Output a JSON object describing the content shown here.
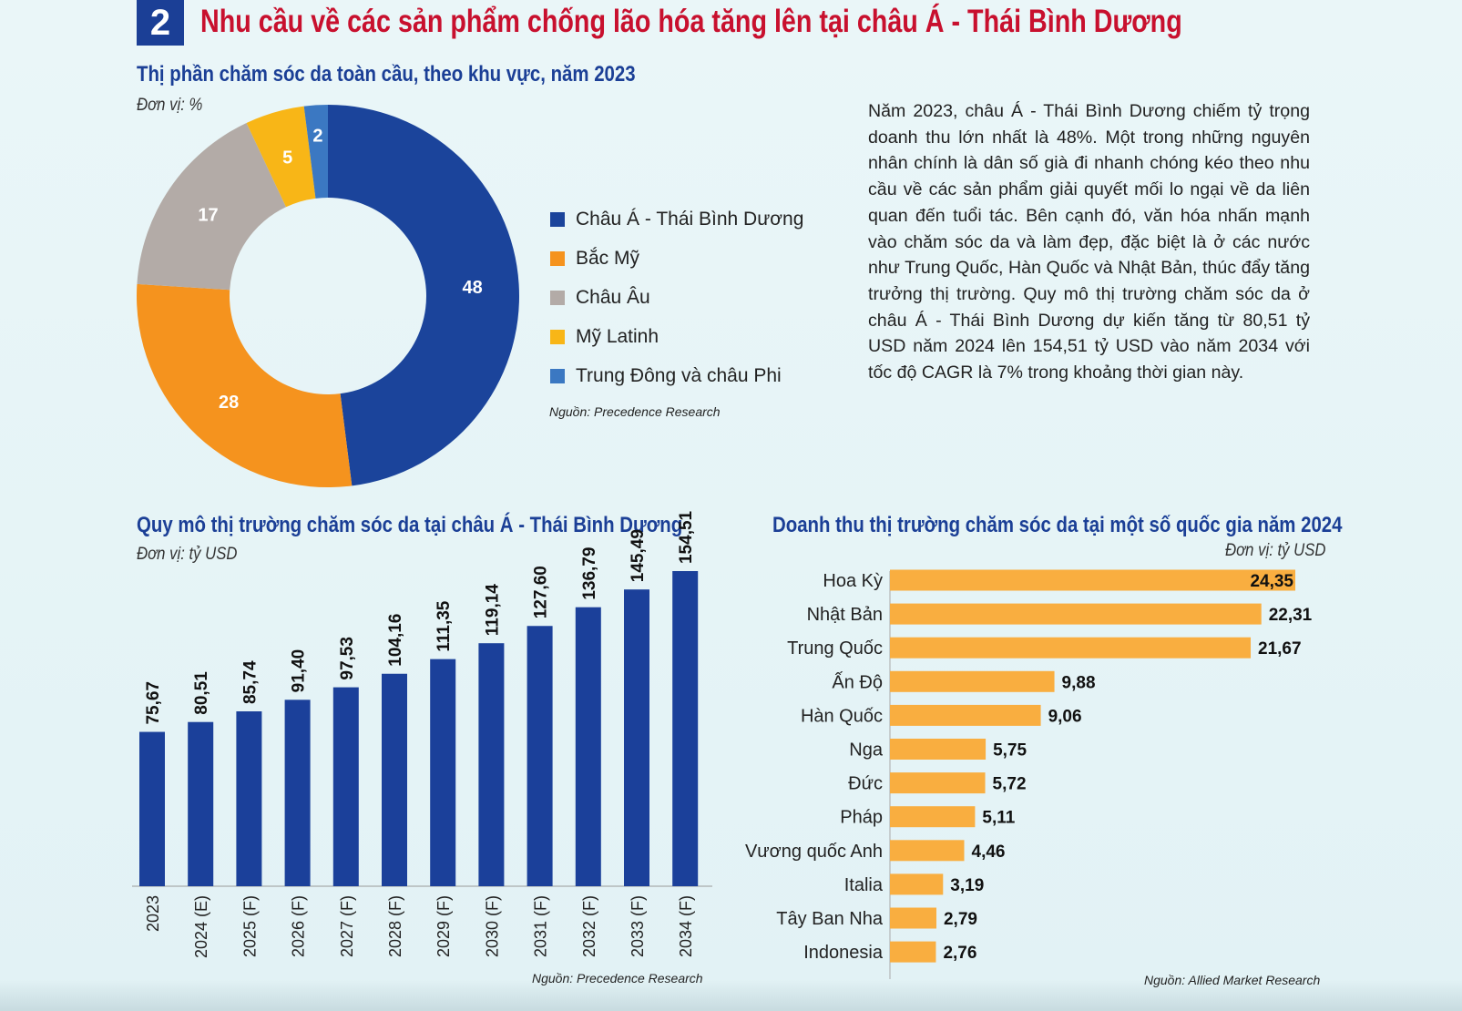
{
  "header": {
    "number": "2",
    "title": "Nhu cầu về các sản phẩm chống lão hóa tăng lên tại châu Á - Thái Bình Dương"
  },
  "description": "Năm 2023, châu Á - Thái Bình Dương chiếm tỷ trọng doanh thu lớn nhất là 48%. Một trong những nguyên nhân chính là dân số già đi nhanh chóng kéo theo nhu cầu về các sản phẩm giải quyết mối lo ngại về da liên quan đến tuổi tác. Bên cạnh đó, văn hóa nhấn mạnh vào chăm sóc da và làm đẹp, đặc biệt là ở các nước như Trung Quốc, Hàn Quốc và Nhật Bản, thúc đẩy tăng trưởng thị trường. Quy mô thị trường chăm sóc da ở châu Á - Thái Bình Dương dự kiến tăng từ 80,51 tỷ USD năm 2024 lên 154,51 tỷ USD vào năm 2034 với tốc độ CAGR là 7% trong khoảng thời gian này.",
  "chart_data": [
    {
      "type": "pie",
      "title": "Thị phần chăm sóc da toàn cầu, theo khu vực, năm 2023",
      "unit": "Đơn vị: %",
      "source": "Nguồn: Precedence Research",
      "legend_position": "right",
      "categories": [
        "Châu Á - Thái Bình Dương",
        "Bắc Mỹ",
        "Châu Âu",
        "Mỹ Latinh",
        "Trung Đông và châu Phi"
      ],
      "values": [
        48,
        28,
        17,
        5,
        2
      ],
      "labels": [
        "48",
        "28",
        "17",
        "5",
        "2"
      ],
      "colors": [
        "#1b449b",
        "#f5931e",
        "#b3aba7",
        "#f8b617",
        "#3b78c2"
      ]
    },
    {
      "type": "bar",
      "title": "Quy mô thị trường chăm sóc da tại châu Á - Thái Bình Dương",
      "unit": "Đơn vị: tỷ USD",
      "source": "Nguồn: Precedence Research",
      "categories": [
        "2023",
        "2024 (E)",
        "2025 (F)",
        "2026 (F)",
        "2027 (F)",
        "2028 (F)",
        "2029 (F)",
        "2030 (F)",
        "2031 (F)",
        "2032 (F)",
        "2033 (F)",
        "2034 (F)"
      ],
      "values": [
        75.67,
        80.51,
        85.74,
        91.4,
        97.53,
        104.16,
        111.35,
        119.14,
        127.6,
        136.79,
        145.49,
        154.51
      ],
      "labels": [
        "75,67",
        "80,51",
        "85,74",
        "91,40",
        "97,53",
        "104,16",
        "111,35",
        "119,14",
        "127,60",
        "136,79",
        "145,49",
        "154,51"
      ],
      "ylim": [
        0,
        160
      ],
      "color": "#1b409a"
    },
    {
      "type": "bar",
      "orientation": "horizontal",
      "title": "Doanh thu thị trường chăm sóc da tại một số quốc gia năm 2024",
      "unit": "Đơn vị: tỷ USD",
      "source": "Nguồn: Allied Market Research",
      "categories": [
        "Hoa Kỳ",
        "Nhật Bản",
        "Trung Quốc",
        "Ấn Độ",
        "Hàn Quốc",
        "Nga",
        "Đức",
        "Pháp",
        "Vương quốc Anh",
        "Italia",
        "Tây Ban Nha",
        "Indonesia"
      ],
      "values": [
        24.35,
        22.31,
        21.67,
        9.88,
        9.06,
        5.75,
        5.72,
        5.11,
        4.46,
        3.19,
        2.79,
        2.76
      ],
      "labels": [
        "24,35",
        "22,31",
        "21,67",
        "9,88",
        "9,06",
        "5,75",
        "5,72",
        "5,11",
        "4,46",
        "3,19",
        "2,79",
        "2,76"
      ],
      "xlim": [
        0,
        24.35
      ],
      "color": "#f9ae40"
    }
  ]
}
